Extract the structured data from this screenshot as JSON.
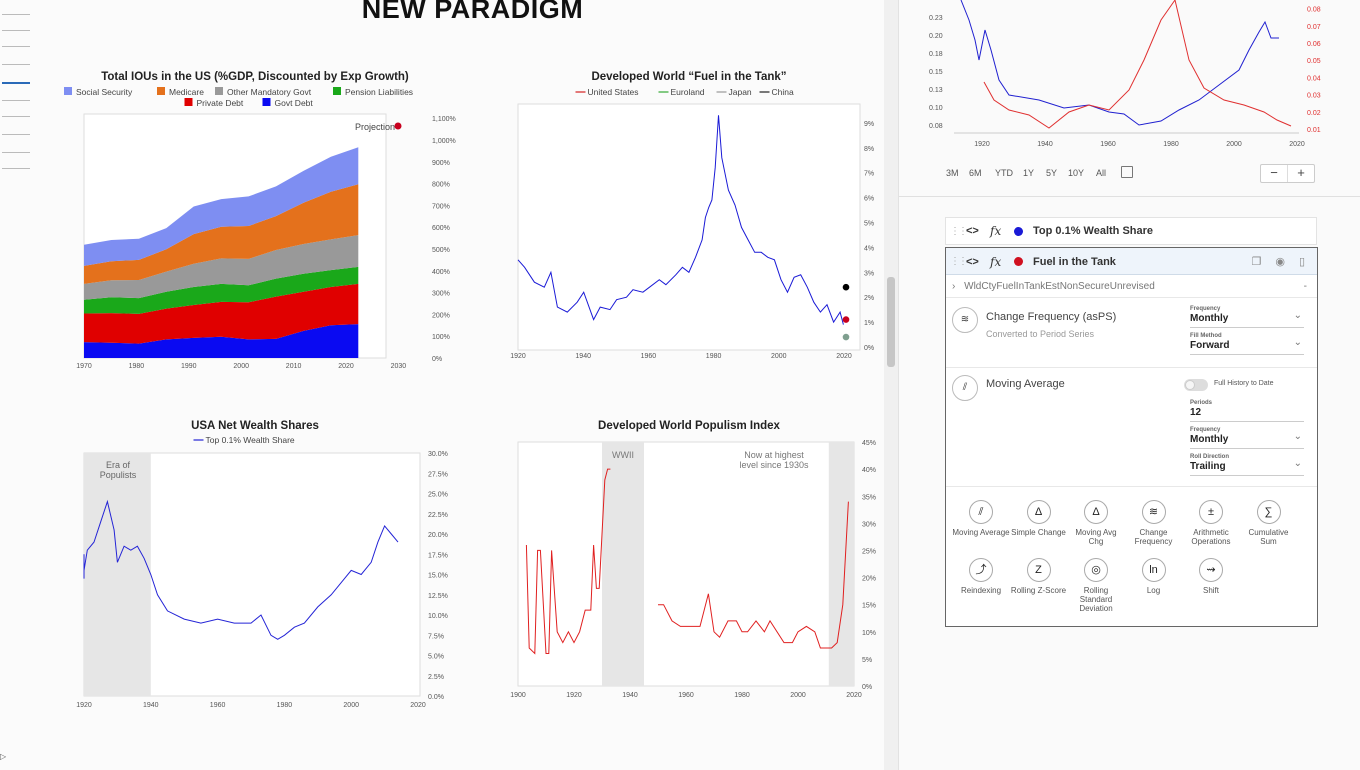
{
  "page": {
    "title": "NEW PARADIGM"
  },
  "charts": [
    {
      "id": "ious",
      "type": "area",
      "title": "Total IOUs in the US (%GDP, Discounted by Exp Growth)",
      "legend": [
        {
          "name": "Social Security",
          "color": "#7e8ef2"
        },
        {
          "name": "Medicare",
          "color": "#e4711c"
        },
        {
          "name": "Other Mandatory Govt",
          "color": "#999999"
        },
        {
          "name": "Pension Liabilities",
          "color": "#1aa81a"
        },
        {
          "name": "Private Debt",
          "color": "#e00000"
        },
        {
          "name": "Govt Debt",
          "color": "#0a0af2"
        }
      ],
      "annotation": "Projection",
      "annotation_color": "#c8001e",
      "x_ticks": [
        "1970",
        "1980",
        "1990",
        "2000",
        "2010",
        "2020",
        "2030"
      ],
      "y_ticks": [
        "0%",
        "100%",
        "200%",
        "300%",
        "400%",
        "500%",
        "600%",
        "700%",
        "800%",
        "900%",
        "1,000%",
        "1,100%"
      ]
    },
    {
      "id": "fuel",
      "type": "line",
      "title": "Developed World “Fuel in the Tank”",
      "legend": [
        {
          "name": "United States",
          "color": "#d62020"
        },
        {
          "name": "Euroland",
          "color": "#33aa33"
        },
        {
          "name": "Japan",
          "color": "#999999"
        },
        {
          "name": "China",
          "color": "#222222"
        }
      ],
      "x_ticks": [
        "1920",
        "1940",
        "1960",
        "1980",
        "2000",
        "2020"
      ],
      "y_ticks": [
        "0%",
        "1%",
        "2%",
        "3%",
        "4%",
        "5%",
        "6%",
        "7%",
        "8%",
        "9%"
      ],
      "line_color": "#1a1ad6",
      "end_dots": [
        {
          "value": 2.4,
          "color": "#000000"
        },
        {
          "value": 1.1,
          "color": "#c8001e"
        },
        {
          "value": 0.4,
          "color": "#7f9f8f"
        }
      ]
    },
    {
      "id": "wealth",
      "type": "line",
      "title": "USA Net Wealth Shares",
      "legend": [
        {
          "name": "Top 0.1% Wealth Share",
          "color": "#2424d6"
        }
      ],
      "shade_label": "Era of Populists",
      "x_ticks": [
        "1920",
        "1940",
        "1960",
        "1980",
        "2000",
        "2020"
      ],
      "y_ticks": [
        "0.0%",
        "2.5%",
        "5.0%",
        "7.5%",
        "10.0%",
        "12.5%",
        "15.0%",
        "17.5%",
        "20.0%",
        "22.5%",
        "25.0%",
        "27.5%",
        "30.0%"
      ]
    },
    {
      "id": "populism",
      "type": "line",
      "title": "Developed World Populism Index",
      "shade_labels": [
        "WWII",
        "Now at highest level since 1930s"
      ],
      "x_ticks": [
        "1900",
        "1920",
        "1940",
        "1960",
        "1980",
        "2000",
        "2020"
      ],
      "y_ticks": [
        "0%",
        "5%",
        "10%",
        "15%",
        "20%",
        "25%",
        "30%",
        "35%",
        "40%",
        "45%"
      ]
    }
  ],
  "chart_data": [
    {
      "type": "area",
      "title": "Total IOUs in the US (%GDP, Discounted by Exp Growth)",
      "x": [
        1970,
        1975,
        1980,
        1985,
        1990,
        1995,
        2000,
        2005,
        2010,
        2015,
        2020
      ],
      "series": [
        {
          "name": "Govt Debt",
          "values": [
            75,
            72,
            68,
            88,
            95,
            100,
            88,
            90,
            128,
            155,
            160
          ]
        },
        {
          "name": "Private Debt",
          "values": [
            135,
            140,
            140,
            145,
            155,
            165,
            175,
            200,
            185,
            180,
            190
          ]
        },
        {
          "name": "Pension Liabilities",
          "values": [
            65,
            75,
            75,
            80,
            85,
            85,
            80,
            85,
            85,
            80,
            80
          ]
        },
        {
          "name": "Other Mandatory Govt",
          "values": [
            75,
            80,
            85,
            95,
            110,
            120,
            125,
            135,
            140,
            145,
            150
          ]
        },
        {
          "name": "Medicare",
          "values": [
            85,
            90,
            95,
            105,
            140,
            150,
            155,
            160,
            195,
            225,
            240
          ]
        },
        {
          "name": "Social Security",
          "values": [
            100,
            100,
            100,
            100,
            130,
            130,
            140,
            140,
            150,
            165,
            175
          ]
        }
      ],
      "xlim": [
        1970,
        2030
      ],
      "ylim": [
        0,
        1100
      ]
    },
    {
      "type": "line",
      "title": "Developed World “Fuel in the Tank”",
      "x": [
        1920,
        1922,
        1925,
        1928,
        1930,
        1932,
        1935,
        1938,
        1940,
        1943,
        1945,
        1948,
        1950,
        1953,
        1955,
        1958,
        1960,
        1963,
        1965,
        1968,
        1970,
        1972,
        1974,
        1976,
        1977,
        1978,
        1979,
        1980,
        1981,
        1982,
        1984,
        1986,
        1988,
        1990,
        1992,
        1994,
        1996,
        1998,
        2000,
        2002,
        2004,
        2006,
        2008,
        2010,
        2012,
        2014,
        2016,
        2018,
        2019
      ],
      "values": [
        3.5,
        3.2,
        2.6,
        2.4,
        3.0,
        1.6,
        1.4,
        1.8,
        2.2,
        1.1,
        1.6,
        1.5,
        1.9,
        2.0,
        2.3,
        2.2,
        2.4,
        2.7,
        2.5,
        2.9,
        3.2,
        3.0,
        3.6,
        4.3,
        5.2,
        5.6,
        5.9,
        7.2,
        9.3,
        7.6,
        6.3,
        5.7,
        4.8,
        4.3,
        3.8,
        3.8,
        3.6,
        3.5,
        2.7,
        2.2,
        2.8,
        2.9,
        2.4,
        1.8,
        1.4,
        1.7,
        1.0,
        1.4,
        0.9
      ],
      "xlim": [
        1920,
        2021
      ],
      "ylim": [
        0,
        9.5
      ]
    },
    {
      "type": "line",
      "title": "USA Net Wealth Shares",
      "x": [
        1913,
        1915,
        1917,
        1919,
        1921,
        1923,
        1925,
        1927,
        1929,
        1930,
        1932,
        1934,
        1936,
        1938,
        1940,
        1942,
        1945,
        1950,
        1955,
        1960,
        1965,
        1970,
        1973,
        1976,
        1978,
        1980,
        1983,
        1986,
        1990,
        1994,
        1998,
        2000,
        2003,
        2006,
        2008,
        2010,
        2012,
        2014
      ],
      "values": [
        17.5,
        14.5,
        16.5,
        15.5,
        18.0,
        19.0,
        21.5,
        24.0,
        20.5,
        16.5,
        18.5,
        18.0,
        18.5,
        17.0,
        15.0,
        12.5,
        10.5,
        9.5,
        9.0,
        9.5,
        9.0,
        9.0,
        10.0,
        7.5,
        7.0,
        7.5,
        8.5,
        9.0,
        11.0,
        12.5,
        14.5,
        15.5,
        15.0,
        16.5,
        19.0,
        21.0,
        20.0,
        19.0
      ],
      "xlim": [
        1913,
        2020
      ],
      "ylim": [
        0,
        30
      ]
    },
    {
      "type": "line",
      "title": "Developed World Populism Index",
      "x": [
        1903,
        1904,
        1906,
        1907,
        1908,
        1910,
        1911,
        1912,
        1914,
        1916,
        1918,
        1920,
        1922,
        1924,
        1926,
        1927,
        1928,
        1929,
        1931,
        1932,
        1933,
        1950,
        1952,
        1955,
        1958,
        1960,
        1962,
        1965,
        1968,
        1970,
        1972,
        1975,
        1978,
        1980,
        1982,
        1985,
        1988,
        1990,
        1995,
        1998,
        2000,
        2003,
        2006,
        2008,
        2010,
        2012,
        2014,
        2016,
        2018
      ],
      "values": [
        26,
        7,
        6,
        25,
        25,
        6,
        6,
        25,
        10,
        8,
        10,
        8,
        10,
        14,
        14,
        26,
        18,
        18,
        38,
        40,
        40,
        15,
        15,
        12,
        11,
        11,
        11,
        11,
        17,
        10,
        9,
        12,
        12,
        10,
        10,
        12,
        10,
        12,
        8,
        8,
        10,
        11,
        10,
        7,
        7,
        7,
        8,
        15,
        34
      ],
      "xlim": [
        1900,
        2020
      ],
      "ylim": [
        0,
        45
      ]
    }
  ],
  "mini_chart": {
    "left_ticks": [
      "0.08",
      "0.10",
      "0.13",
      "0.15",
      "0.18",
      "0.20",
      "0.23"
    ],
    "right_ticks": [
      "0.01",
      "0.02",
      "0.03",
      "0.04",
      "0.05",
      "0.06",
      "0.07",
      "0.08"
    ],
    "x_ticks": [
      "1920",
      "1940",
      "1960",
      "1980",
      "2000",
      "2020"
    ],
    "range_buttons": [
      "3M",
      "6M",
      "YTD",
      "1Y",
      "5Y",
      "10Y",
      "All"
    ],
    "zoom_out": "−",
    "zoom_in": "+"
  },
  "series_panel": {
    "series1": {
      "name": "Top 0.1% Wealth Share",
      "color": "#1a1ad6"
    },
    "series2": {
      "name": "Fuel in the Tank",
      "color": "#d01020"
    },
    "code": "WldCtyFuelInTankEstNonSecureUnrevised",
    "transforms": [
      {
        "title": "Change Frequency (asPS)",
        "subtitle": "Converted to Period Series",
        "fields": [
          {
            "label": "Frequency",
            "value": "Monthly"
          },
          {
            "label": "Fill Method",
            "value": "Forward"
          }
        ]
      },
      {
        "title": "Moving Average",
        "toggle_label": "Full History to Date",
        "fields": [
          {
            "label": "Periods",
            "value": "12"
          },
          {
            "label": "Frequency",
            "value": "Monthly"
          },
          {
            "label": "Roll Direction",
            "value": "Trailing"
          }
        ]
      }
    ],
    "tools": [
      {
        "label": "Moving Average",
        "icon": "moving-average-icon"
      },
      {
        "label": "Simple Change",
        "icon": "delta-icon"
      },
      {
        "label": "Moving Avg Chg",
        "icon": "delta-ma-icon"
      },
      {
        "label": "Change Frequency",
        "icon": "change-frequency-icon"
      },
      {
        "label": "Arithmetic Operations",
        "icon": "arithmetic-icon"
      },
      {
        "label": "Cumulative Sum",
        "icon": "cumulative-sum-icon"
      },
      {
        "label": "Reindexing",
        "icon": "reindex-icon"
      },
      {
        "label": "Rolling Z-Score",
        "icon": "zscore-icon"
      },
      {
        "label": "Rolling Standard Deviation",
        "icon": "std-dev-icon"
      },
      {
        "label": "Log",
        "icon": "log-icon"
      },
      {
        "label": "Shift",
        "icon": "shift-icon"
      }
    ]
  }
}
